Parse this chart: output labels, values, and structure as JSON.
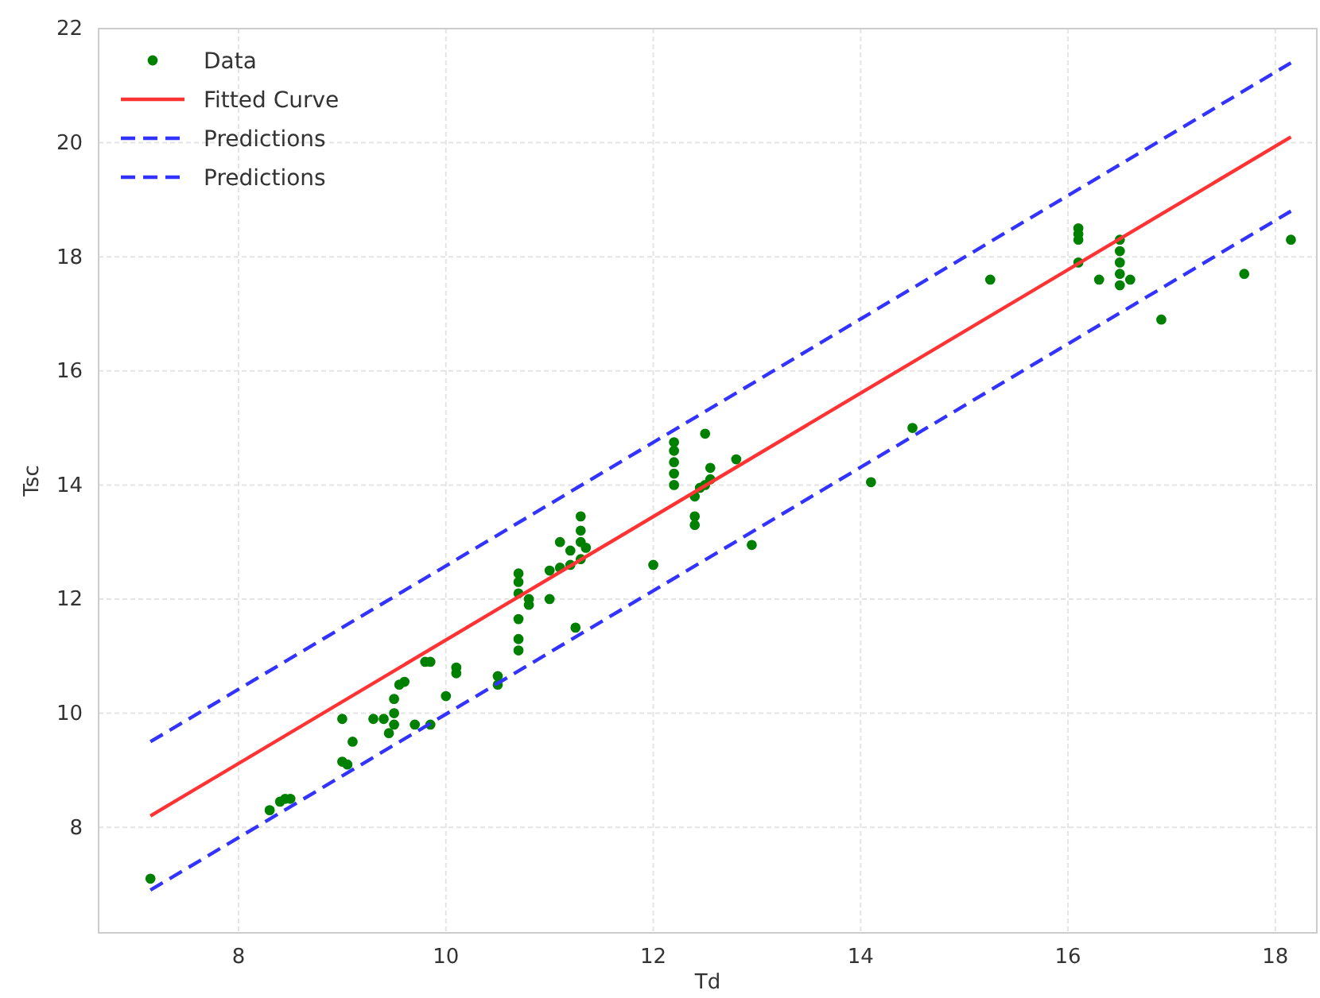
{
  "chart_data": {
    "type": "scatter",
    "xlabel": "Td",
    "ylabel": "Tsc",
    "xlim": [
      6.65,
      18.4
    ],
    "ylim": [
      6.15,
      22
    ],
    "xticks": [
      8,
      10,
      12,
      14,
      16,
      18
    ],
    "yticks": [
      8,
      10,
      12,
      14,
      16,
      18,
      20,
      22
    ],
    "grid": true,
    "legend": "top left",
    "series": [
      {
        "name": "Data",
        "marker": "circle",
        "color": "#008000",
        "x": [
          7.15,
          8.3,
          8.4,
          8.45,
          8.5,
          9.0,
          9.0,
          9.05,
          9.1,
          9.3,
          9.4,
          9.45,
          9.5,
          9.5,
          9.5,
          9.55,
          9.6,
          9.7,
          9.8,
          9.85,
          9.85,
          10.0,
          10.1,
          10.1,
          10.5,
          10.5,
          10.7,
          10.7,
          10.7,
          10.7,
          10.7,
          10.7,
          10.8,
          10.8,
          11.0,
          11.0,
          11.1,
          11.1,
          11.2,
          11.2,
          11.25,
          11.3,
          11.3,
          11.3,
          11.3,
          11.35,
          12.0,
          12.2,
          12.2,
          12.2,
          12.2,
          12.2,
          12.4,
          12.4,
          12.4,
          12.45,
          12.5,
          12.55,
          12.55,
          12.5,
          12.8,
          12.95,
          14.1,
          14.5,
          15.25,
          16.1,
          16.1,
          16.1,
          16.1,
          16.3,
          16.5,
          16.5,
          16.5,
          16.5,
          16.5,
          16.6,
          16.9,
          17.7,
          18.15
        ],
        "values": [
          7.1,
          8.3,
          8.45,
          8.5,
          8.5,
          9.9,
          9.15,
          9.1,
          9.5,
          9.9,
          9.9,
          9.65,
          9.8,
          10.0,
          10.25,
          10.5,
          10.55,
          9.8,
          10.9,
          10.9,
          9.8,
          10.3,
          10.7,
          10.8,
          10.5,
          10.65,
          11.1,
          11.3,
          11.65,
          12.1,
          12.3,
          12.45,
          11.9,
          12.0,
          12.0,
          12.5,
          12.55,
          13.0,
          12.6,
          12.85,
          11.5,
          12.7,
          13.0,
          13.2,
          13.45,
          12.9,
          12.6,
          14.0,
          14.2,
          14.4,
          14.6,
          14.75,
          13.3,
          13.45,
          13.8,
          13.95,
          14.0,
          14.1,
          14.3,
          14.9,
          14.45,
          12.95,
          14.05,
          15.0,
          17.6,
          17.9,
          18.3,
          18.4,
          18.5,
          17.6,
          17.5,
          17.7,
          17.9,
          18.1,
          18.3,
          17.6,
          16.9,
          17.7,
          18.3
        ]
      },
      {
        "name": "Fitted Curve",
        "type": "line",
        "line_style": "solid",
        "color": "#ff3333",
        "x": [
          7.15,
          18.15
        ],
        "values": [
          8.2,
          20.1
        ]
      },
      {
        "name": "Predictions",
        "type": "line",
        "line_style": "dashed",
        "color": "#3333ff",
        "x": [
          7.15,
          18.15
        ],
        "values": [
          9.5,
          21.4
        ]
      },
      {
        "name": "Predictions",
        "type": "line",
        "line_style": "dashed",
        "color": "#3333ff",
        "x": [
          7.15,
          18.15
        ],
        "values": [
          6.9,
          18.8
        ]
      }
    ]
  }
}
